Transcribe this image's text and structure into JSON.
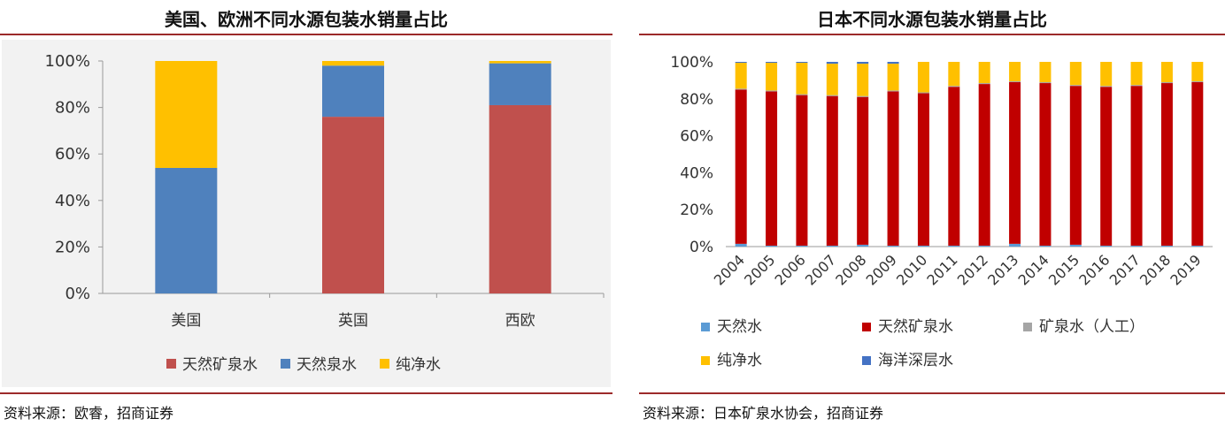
{
  "left": {
    "title": "美国、欧洲不同水源包装水销量占比",
    "source": "资料来源：欧睿，招商证券"
  },
  "right": {
    "title": "日本不同水源包装水销量占比",
    "source": "资料来源：日本矿泉水协会，招商证券"
  },
  "chart_data": [
    {
      "type": "bar",
      "stacked": true,
      "title": "美国、欧洲不同水源包装水销量占比",
      "categories": [
        "美国",
        "英国",
        "西欧"
      ],
      "ylim": [
        0,
        100
      ],
      "yticks": [
        "0%",
        "20%",
        "40%",
        "60%",
        "80%",
        "100%"
      ],
      "legend_position": "bottom",
      "series": [
        {
          "name": "天然矿泉水",
          "color": "#c0504d",
          "values": [
            0,
            76,
            81
          ]
        },
        {
          "name": "天然泉水",
          "color": "#4f81bd",
          "values": [
            54,
            22,
            18
          ]
        },
        {
          "name": "纯净水",
          "color": "#ffc000",
          "values": [
            46,
            2,
            1
          ]
        }
      ]
    },
    {
      "type": "bar",
      "stacked": true,
      "title": "日本不同水源包装水销量占比",
      "categories": [
        "2004",
        "2005",
        "2006",
        "2007",
        "2008",
        "2009",
        "2010",
        "2011",
        "2012",
        "2013",
        "2014",
        "2015",
        "2016",
        "2017",
        "2018",
        "2019"
      ],
      "ylim": [
        0,
        100
      ],
      "yticks": [
        "0%",
        "20%",
        "40%",
        "60%",
        "80%",
        "100%"
      ],
      "legend_position": "bottom",
      "series": [
        {
          "name": "天然水",
          "color": "#5b9bd5",
          "values": [
            1.5,
            0.5,
            0.5,
            0.5,
            1,
            0.5,
            0.5,
            0.5,
            0.5,
            1.5,
            0.5,
            1,
            0.5,
            0.5,
            0.5,
            0.5
          ]
        },
        {
          "name": "天然矿泉水",
          "color": "#c00000",
          "values": [
            83.5,
            83.5,
            81.5,
            81,
            80,
            83.5,
            82.5,
            86,
            87.5,
            87.5,
            88,
            86,
            86,
            86.5,
            88,
            88.5
          ]
        },
        {
          "name": "矿泉水（人工）",
          "color": "#a5a5a5",
          "values": [
            0.5,
            0.5,
            0.5,
            0.5,
            0.5,
            0.5,
            0.5,
            0.5,
            0.5,
            0.5,
            0.5,
            0.5,
            0.5,
            0.5,
            0.5,
            0.5
          ]
        },
        {
          "name": "纯净水",
          "color": "#ffc000",
          "values": [
            14,
            15,
            17,
            17,
            17.5,
            14.5,
            16.5,
            13,
            11.5,
            10.5,
            11,
            12.5,
            13,
            12.5,
            11,
            10.5
          ]
        },
        {
          "name": "海洋深层水",
          "color": "#4472c4",
          "values": [
            0.5,
            0.5,
            0.5,
            1,
            1,
            1,
            0,
            0,
            0,
            0,
            0,
            0,
            0,
            0,
            0,
            0
          ]
        }
      ]
    }
  ]
}
